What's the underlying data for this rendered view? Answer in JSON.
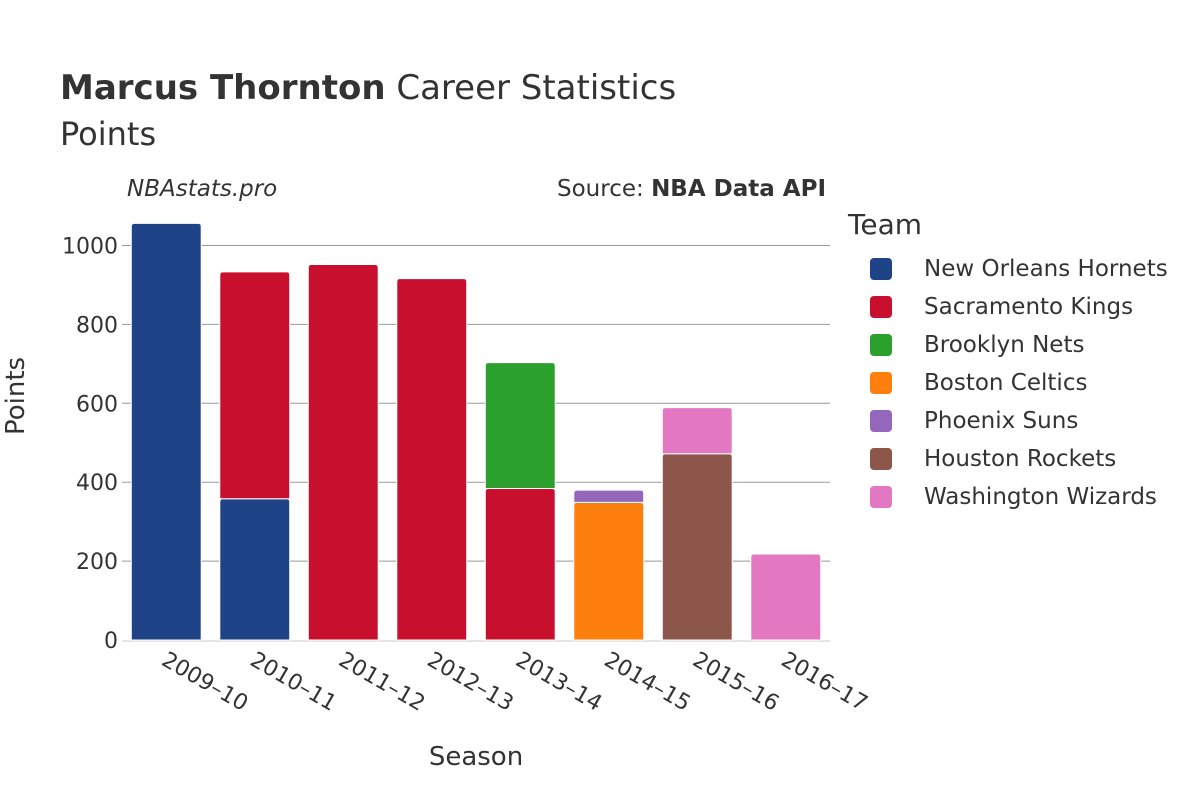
{
  "header": {
    "title_bold": "Marcus Thornton",
    "title_rest": "Career Statistics",
    "subtitle": "Points",
    "watermark": "NBAstats.pro",
    "source_prefix": "Source:",
    "source_name": "NBA Data API"
  },
  "chart_data": {
    "type": "bar",
    "stacked": true,
    "xlabel": "Season",
    "ylabel": "Points",
    "ylim": [
      0,
      1090
    ],
    "yticks": [
      0,
      200,
      400,
      600,
      800,
      1000
    ],
    "grid": true,
    "legend_title": "Team",
    "legend_position": "right",
    "categories": [
      "2009–10",
      "2010–11",
      "2011–12",
      "2012–13",
      "2013–14",
      "2014–15",
      "2015–16",
      "2016–17"
    ],
    "series": [
      {
        "name": "New Orleans Hornets",
        "color": "#1f4387",
        "values": [
          1056,
          358,
          0,
          0,
          0,
          0,
          0,
          0
        ]
      },
      {
        "name": "Sacramento Kings",
        "color": "#c8102e",
        "values": [
          0,
          575,
          952,
          916,
          384,
          0,
          0,
          0
        ]
      },
      {
        "name": "Brooklyn Nets",
        "color": "#2ca02c",
        "values": [
          0,
          0,
          0,
          0,
          319,
          0,
          0,
          0
        ]
      },
      {
        "name": "Boston Celtics",
        "color": "#ff7f0e",
        "values": [
          0,
          0,
          0,
          0,
          0,
          349,
          0,
          0
        ]
      },
      {
        "name": "Phoenix Suns",
        "color": "#9467bd",
        "values": [
          0,
          0,
          0,
          0,
          0,
          31,
          0,
          0
        ]
      },
      {
        "name": "Houston Rockets",
        "color": "#8c564b",
        "values": [
          0,
          0,
          0,
          0,
          0,
          0,
          472,
          0
        ]
      },
      {
        "name": "Washington Wizards",
        "color": "#e377c2",
        "values": [
          0,
          0,
          0,
          0,
          0,
          0,
          117,
          218
        ]
      }
    ]
  }
}
